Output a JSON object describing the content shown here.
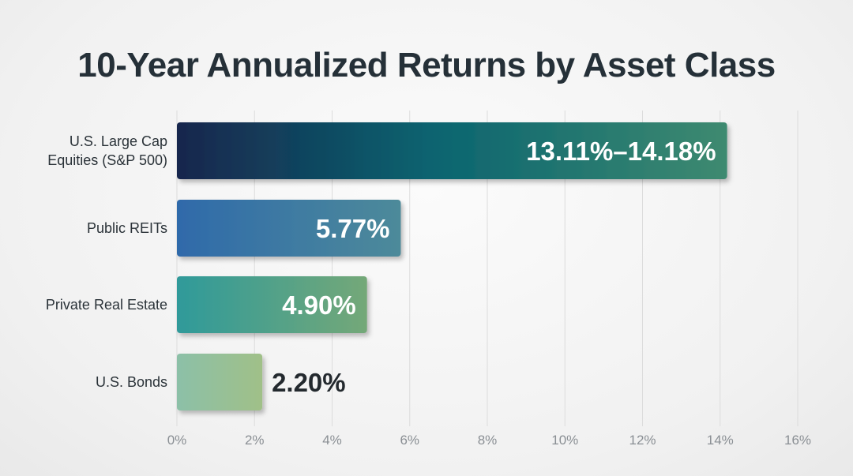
{
  "chart_data": {
    "type": "bar",
    "orientation": "horizontal",
    "title": "10-Year Annualized Returns by Asset Class",
    "xlabel": "",
    "ylabel": "",
    "categories": [
      [
        "U.S. Large Cap",
        "Equities (S&P 500)"
      ],
      [
        "Public REITs"
      ],
      [
        "Private Real Estate"
      ],
      [
        "U.S. Bonds"
      ]
    ],
    "values": [
      14.18,
      5.77,
      4.9,
      2.2
    ],
    "value_range_low": [
      13.11,
      null,
      null,
      null
    ],
    "data_labels": [
      "13.11%–14.18%",
      "5.77%",
      "4.90%",
      "2.20%"
    ],
    "xlim": [
      0,
      16
    ],
    "ticks": [
      0,
      2,
      4,
      6,
      8,
      10,
      12,
      14,
      16
    ],
    "tick_labels": [
      "0%",
      "2%",
      "4%",
      "6%",
      "8%",
      "10%",
      "12%",
      "14%",
      "16%"
    ],
    "grid": "vertical",
    "bar_colors": [
      [
        "#17264d",
        "#0a6470",
        "#3e8a70"
      ],
      [
        "#2f6aaa",
        "#4d8a9a"
      ],
      [
        "#2f9a9a",
        "#74a878"
      ],
      [
        "#8cc0a8",
        "#a0c088"
      ]
    ],
    "label_colors": [
      "#ffffff",
      "#ffffff",
      "#ffffff",
      "#23292e"
    ]
  }
}
